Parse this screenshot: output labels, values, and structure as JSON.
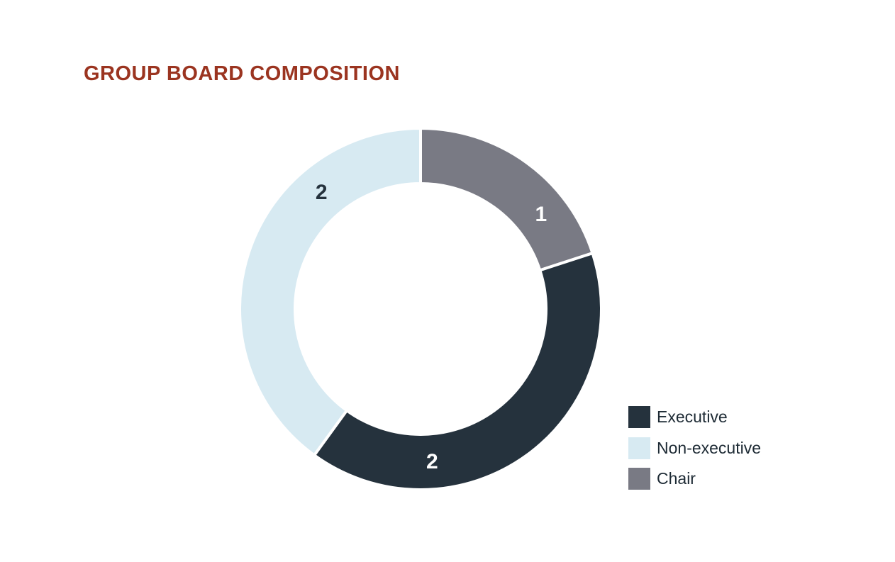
{
  "title": "GROUP BOARD COMPOSITION",
  "colors": {
    "title": "#9b3420",
    "slice_gap": "#ffffff"
  },
  "chart_data": {
    "type": "pie",
    "title": "GROUP BOARD COMPOSITION",
    "donut": true,
    "start": "top",
    "direction": "clockwise",
    "legend_position": "bottom-right",
    "slices": [
      {
        "name": "Chair",
        "value": 1,
        "color": "#797a84",
        "label_color": "#ffffff"
      },
      {
        "name": "Executive",
        "value": 2,
        "color": "#25323d",
        "label_color": "#ffffff"
      },
      {
        "name": "Non-executive",
        "value": 2,
        "color": "#d7eaf2",
        "label_color": "#25323d"
      }
    ],
    "legend": [
      {
        "name": "Executive",
        "color": "#25323d"
      },
      {
        "name": "Non-executive",
        "color": "#d7eaf2"
      },
      {
        "name": "Chair",
        "color": "#797a84"
      }
    ]
  }
}
